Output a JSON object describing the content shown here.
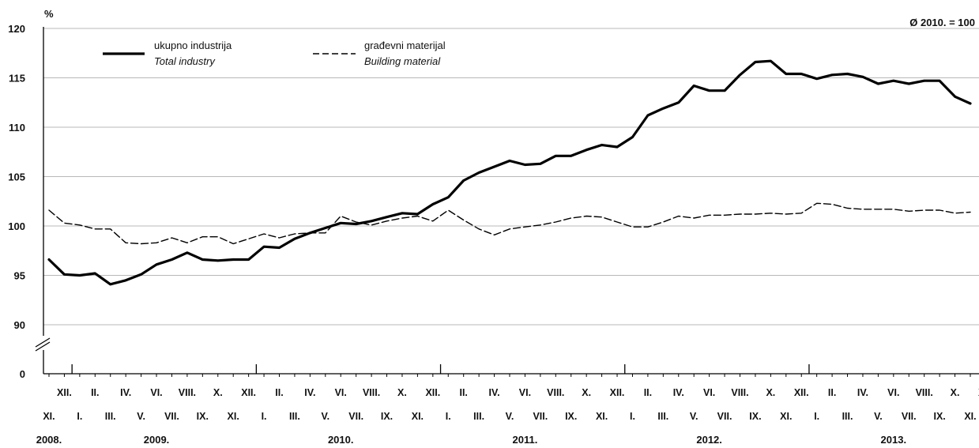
{
  "chart_data": {
    "type": "line",
    "ylabel": "%",
    "base_note": "Ø 2010. = 100",
    "ylim": [
      90,
      120
    ],
    "y_ticks": [
      "120",
      "115",
      "110",
      "105",
      "100",
      "95",
      "90"
    ],
    "y_zero_label": "0",
    "y_axis_break": true,
    "grid": true,
    "legend_position": "top-left",
    "x_top_row": [
      "XII.",
      "II.",
      "IV.",
      "VI.",
      "VIII.",
      "X.",
      "XII.",
      "II.",
      "IV.",
      "VI.",
      "VIII.",
      "X.",
      "XII.",
      "II.",
      "IV.",
      "VI.",
      "VIII.",
      "X.",
      "XII.",
      "II.",
      "IV.",
      "VI.",
      "VIII.",
      "X.",
      "XII.",
      "II.",
      "IV.",
      "VI.",
      "VIII.",
      "X.",
      "XII.",
      "II.",
      "IV.",
      "VI.",
      "VIII.",
      "X."
    ],
    "x_bottom_row": [
      "XI.",
      "I.",
      "III.",
      "V.",
      "VII.",
      "IX.",
      "XI.",
      "I.",
      "III.",
      "V.",
      "VII.",
      "IX.",
      "XI.",
      "I.",
      "III.",
      "V.",
      "VII.",
      "IX.",
      "XI.",
      "I.",
      "III.",
      "V.",
      "VII.",
      "IX.",
      "XI.",
      "I.",
      "III.",
      "V.",
      "VII.",
      "IX.",
      "XI.",
      "I.",
      "III.",
      "V.",
      "VII.",
      "IX.",
      "XI."
    ],
    "years": [
      "2008.",
      "2009.",
      "2010.",
      "2011.",
      "2012.",
      "2013."
    ],
    "x": [
      "2008-11",
      "2008-12",
      "2009-01",
      "2009-02",
      "2009-03",
      "2009-04",
      "2009-05",
      "2009-06",
      "2009-07",
      "2009-08",
      "2009-09",
      "2009-10",
      "2009-11",
      "2009-12",
      "2010-01",
      "2010-02",
      "2010-03",
      "2010-04",
      "2010-05",
      "2010-06",
      "2010-07",
      "2010-08",
      "2010-09",
      "2010-10",
      "2010-11",
      "2010-12",
      "2011-01",
      "2011-02",
      "2011-03",
      "2011-04",
      "2011-05",
      "2011-06",
      "2011-07",
      "2011-08",
      "2011-09",
      "2011-10",
      "2011-11",
      "2011-12",
      "2012-01",
      "2012-02",
      "2012-03",
      "2012-04",
      "2012-05",
      "2012-06",
      "2012-07",
      "2012-08",
      "2012-09",
      "2012-10",
      "2012-11",
      "2012-12",
      "2013-01",
      "2013-02",
      "2013-03",
      "2013-04",
      "2013-05",
      "2013-06",
      "2013-07",
      "2013-08",
      "2013-09",
      "2013-10",
      "2013-11"
    ],
    "series": [
      {
        "name": "ukupno industrija",
        "name_en": "Total industry",
        "style": "solid",
        "color": "#000000",
        "values": [
          96.6,
          95.1,
          95.0,
          95.2,
          94.1,
          94.5,
          95.1,
          96.1,
          96.6,
          97.3,
          96.6,
          96.5,
          96.6,
          96.6,
          97.9,
          97.8,
          98.7,
          99.3,
          99.8,
          100.3,
          100.2,
          100.5,
          100.9,
          101.3,
          101.2,
          102.2,
          102.9,
          104.6,
          105.4,
          106.0,
          106.6,
          106.2,
          106.3,
          107.1,
          107.1,
          107.7,
          108.2,
          108.0,
          109.0,
          111.2,
          111.9,
          112.5,
          114.2,
          113.7,
          113.7,
          115.3,
          116.6,
          116.7,
          115.4,
          115.4,
          114.9,
          115.3,
          115.4,
          115.1,
          114.4,
          114.7,
          114.4,
          114.7,
          114.7,
          113.1,
          112.4
        ]
      },
      {
        "name": "građevni materijal",
        "name_en": "Building material",
        "style": "dashed",
        "color": "#000000",
        "values": [
          101.6,
          100.3,
          100.1,
          99.7,
          99.7,
          98.3,
          98.2,
          98.3,
          98.8,
          98.3,
          98.9,
          98.9,
          98.2,
          98.7,
          99.2,
          98.8,
          99.2,
          99.3,
          99.3,
          101.0,
          100.4,
          100.1,
          100.5,
          100.8,
          101.0,
          100.5,
          101.6,
          100.6,
          99.7,
          99.1,
          99.7,
          99.9,
          100.1,
          100.4,
          100.8,
          101.0,
          100.9,
          100.4,
          99.9,
          99.9,
          100.4,
          101.0,
          100.8,
          101.1,
          101.1,
          101.2,
          101.2,
          101.3,
          101.2,
          101.3,
          102.3,
          102.2,
          101.8,
          101.7,
          101.7,
          101.7,
          101.5,
          101.6,
          101.6,
          101.3,
          101.4
        ]
      }
    ]
  }
}
